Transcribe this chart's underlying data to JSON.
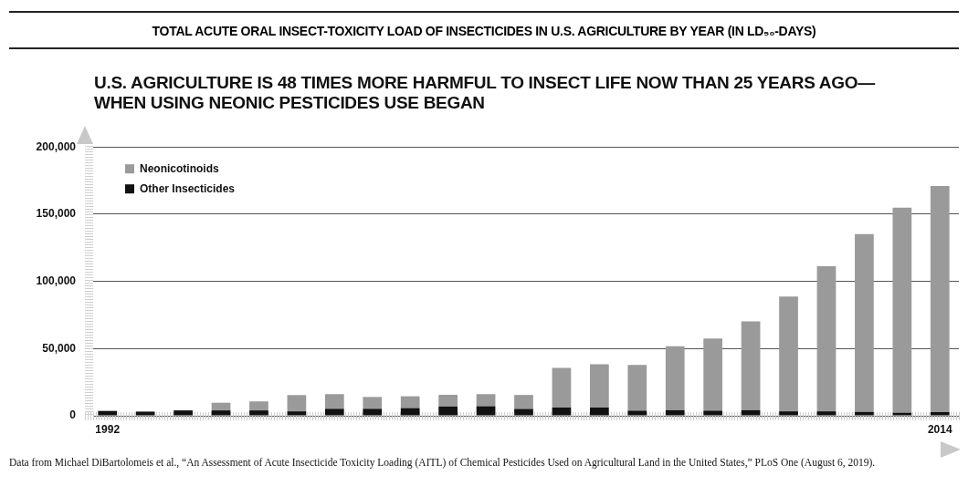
{
  "chart_data": {
    "type": "bar",
    "title": "TOTAL ACUTE ORAL INSECT-TOXICITY LOAD OF INSECTICIDES IN U.S. AGRICULTURE BY YEAR (IN LD₅₀-DAYS)",
    "subtitle": "U.S. AGRICULTURE IS 48 TIMES MORE HARMFUL TO INSECT LIFE NOW THAN 25 YEARS AGO—WHEN USING NEONIC PESTICIDES USE BEGAN",
    "categories": [
      "1992",
      null,
      null,
      null,
      null,
      null,
      null,
      null,
      null,
      null,
      null,
      null,
      null,
      null,
      null,
      null,
      null,
      null,
      null,
      null,
      null,
      null,
      "2014"
    ],
    "series": [
      {
        "name": "Other Insecticides",
        "color": "#111111",
        "values": [
          3600,
          3100,
          4000,
          4000,
          4000,
          3300,
          5200,
          5200,
          5700,
          6900,
          7100,
          5100,
          6200,
          6200,
          3800,
          4200,
          3800,
          4200,
          3300,
          3300,
          2900,
          2300,
          2700
        ]
      },
      {
        "name": "Neonicotinoids",
        "color": "#9a9a9a",
        "values": [
          0,
          0,
          0,
          5700,
          6700,
          12100,
          10900,
          8800,
          8800,
          8700,
          9000,
          10400,
          29400,
          32100,
          34000,
          47500,
          53700,
          66100,
          85400,
          107900,
          132200,
          152500,
          168200
        ]
      }
    ],
    "stacked": true,
    "ylim": [
      0,
      200000
    ],
    "yticks": [
      {
        "value": 0,
        "label": "0"
      },
      {
        "value": 50000,
        "label": "50,000"
      },
      {
        "value": 100000,
        "label": "100,000"
      },
      {
        "value": 150000,
        "label": "150,000"
      },
      {
        "value": 200000,
        "label": "200,000"
      }
    ],
    "grid": "y",
    "legend": "top left",
    "annotations": [
      "Data from Michael DiBartolomeis et al., “An Assessment of Acute Insecticide Toxicity Loading (AITL) of Chemical Pesticides Used on Agricultural Land in the United States,” PLoS One (August 6, 2019)."
    ]
  }
}
